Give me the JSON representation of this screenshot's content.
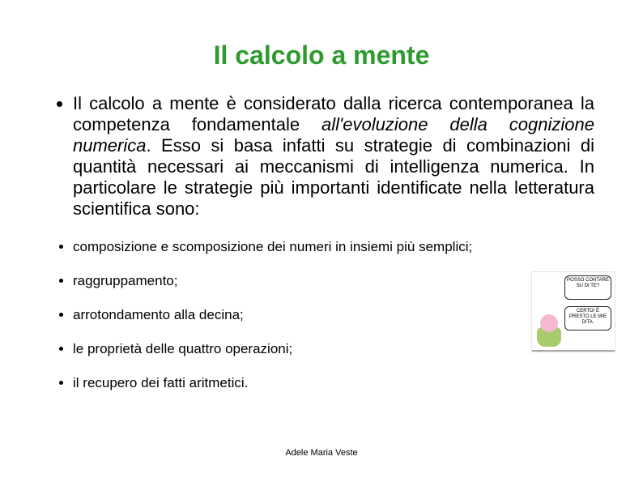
{
  "title": {
    "text": "Il calcolo a mente",
    "color": "#2e9b2e",
    "fontsize": 32
  },
  "main_paragraph": {
    "part1": "Il calcolo a mente è considerato dalla ricerca contemporanea la competenza fondamentale ",
    "italic": "all'evoluzione della cognizione numerica",
    "part2": ". Esso si basa infatti su strategie di combinazioni di quantità necessari ai meccanismi di intelligenza numerica. In particolare le strategie più importanti identificate nella letteratura scientifica sono:",
    "fontsize": 22,
    "color": "#000000"
  },
  "sub_items": [
    "composizione e scomposizione dei numeri in insiemi più semplici;",
    " raggruppamento;",
    "arrotondamento alla decina;",
    "le proprietà delle quattro operazioni;",
    "il recupero dei fatti aritmetici."
  ],
  "sub_style": {
    "fontsize": 17,
    "color": "#000000"
  },
  "footer": {
    "text": "Adele Maria Veste",
    "fontsize": 11,
    "color": "#000000"
  },
  "cartoon": {
    "bubble1": "POSSO CONTARE SU DI TE?",
    "bubble2": "CERTO! È PRESTO LE MIE DITA."
  }
}
